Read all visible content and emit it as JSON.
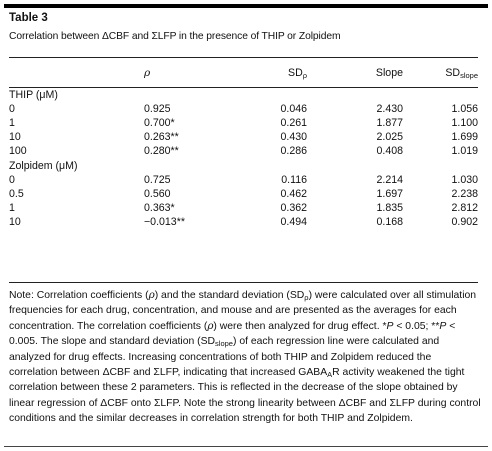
{
  "table_label": "Table 3",
  "caption": "Correlation between ΔCBF and ΣLFP in the presence of THIP or Zolpidem",
  "columns": {
    "rho": "ρ",
    "sd_rho_main": "SD",
    "sd_rho_sub": "ρ",
    "slope": "Slope",
    "sd_slope_main": "SD",
    "sd_slope_sub": "slope"
  },
  "groups": [
    {
      "label": "THIP (μM)",
      "rows": [
        {
          "conc": "0",
          "rho": "0.925",
          "sd_rho": "0.046",
          "slope": "2.430",
          "sd_slope": "1.056"
        },
        {
          "conc": "1",
          "rho": "0.700*",
          "sd_rho": "0.261",
          "slope": "1.877",
          "sd_slope": "1.100"
        },
        {
          "conc": "10",
          "rho": "0.263**",
          "sd_rho": "0.430",
          "slope": "2.025",
          "sd_slope": "1.699"
        },
        {
          "conc": "100",
          "rho": "0.280**",
          "sd_rho": "0.286",
          "slope": "0.408",
          "sd_slope": "1.019"
        }
      ]
    },
    {
      "label": "Zolpidem (μM)",
      "rows": [
        {
          "conc": "0",
          "rho": "0.725",
          "sd_rho": "0.116",
          "slope": "2.214",
          "sd_slope": "1.030"
        },
        {
          "conc": "0.5",
          "rho": "0.560",
          "sd_rho": "0.462",
          "slope": "1.697",
          "sd_slope": "2.238"
        },
        {
          "conc": "1",
          "rho": "0.363*",
          "sd_rho": "0.362",
          "slope": "1.835",
          "sd_slope": "2.812"
        },
        {
          "conc": "10",
          "rho": "−0.013**",
          "sd_rho": "0.494",
          "slope": "0.168",
          "sd_slope": "0.902"
        }
      ]
    }
  ],
  "note": {
    "p1": "Note: Correlation coefficients (",
    "rho1": "ρ",
    "p2": ") and the standard deviation (SD",
    "sub1": "ρ",
    "p3": ") were calculated over all stimulation frequencies for each drug, concentration, and mouse and are presented as the averages for each concentration. The correlation coefficients (",
    "rho2": "ρ",
    "p4": ") were then analyzed for drug effect. *",
    "pvar1": "P",
    "p5": " < 0.05; **",
    "pvar2": "P",
    "p6": " < 0.005. The slope and standard deviation (SD",
    "sub2": "slope",
    "p7": ") of each regression line were calculated and analyzed for drug effects. Increasing concentrations of both THIP and Zolpidem reduced the correlation between ΔCBF and ΣLFP, indicating that increased GABA",
    "sub3": "A",
    "p8": "R activity weakened the tight correlation between these 2 parameters. This is reflected in the decrease of the slope obtained by linear regression of ΔCBF onto ΣLFP. Note the strong linearity between ΔCBF and ΣLFP during control conditions and the similar decreases in correlation strength for both THIP and Zolpidem."
  }
}
